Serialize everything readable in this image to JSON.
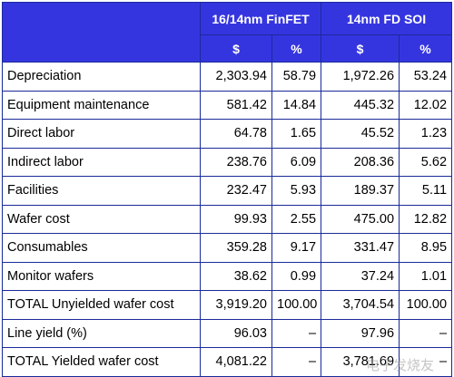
{
  "table": {
    "group_headers": [
      "16/14nm FinFET",
      "14nm FD SOI"
    ],
    "sub_headers": [
      "$",
      "%",
      "$",
      "%"
    ],
    "rows": [
      {
        "label": "Depreciation",
        "v": [
          "2,303.94",
          "58.79",
          "1,972.26",
          "53.24"
        ]
      },
      {
        "label": "Equipment maintenance",
        "v": [
          "581.42",
          "14.84",
          "445.32",
          "12.02"
        ]
      },
      {
        "label": "Direct labor",
        "v": [
          "64.78",
          "1.65",
          "45.52",
          "1.23"
        ]
      },
      {
        "label": "Indirect labor",
        "v": [
          "238.76",
          "6.09",
          "208.36",
          "5.62"
        ]
      },
      {
        "label": "Facilities",
        "v": [
          "232.47",
          "5.93",
          "189.37",
          "5.11"
        ]
      },
      {
        "label": "Wafer cost",
        "v": [
          "99.93",
          "2.55",
          "475.00",
          "12.82"
        ]
      },
      {
        "label": "Consumables",
        "v": [
          "359.28",
          "9.17",
          "331.47",
          "8.95"
        ]
      },
      {
        "label": "Monitor wafers",
        "v": [
          "38.62",
          "0.99",
          "37.24",
          "1.01"
        ]
      },
      {
        "label": "TOTAL Unyielded wafer cost",
        "v": [
          "3,919.20",
          "100.00",
          "3,704.54",
          "100.00"
        ]
      },
      {
        "label": "Line yield (%)",
        "v": [
          "96.03",
          "–",
          "97.96",
          "–"
        ]
      },
      {
        "label": "TOTAL Yielded wafer cost",
        "v": [
          "4,081.22",
          "–",
          "3,781.69",
          "–"
        ]
      }
    ]
  },
  "watermark": "电子发烧友"
}
